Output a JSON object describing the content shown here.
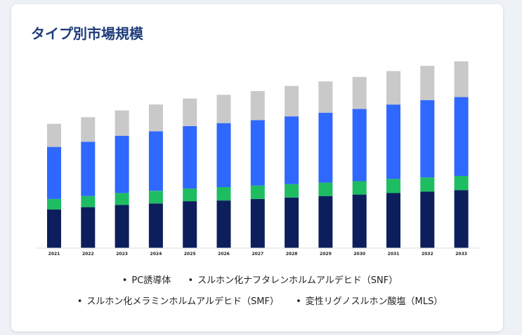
{
  "title": "タイプ別市場規模",
  "chart_data": {
    "type": "bar",
    "stacked": true,
    "title": "タイプ別市場規模",
    "categories": [
      "2021",
      "2022",
      "2023",
      "2024",
      "2025",
      "2026",
      "2027",
      "2028",
      "2029",
      "2030",
      "2031",
      "2032",
      "2033"
    ],
    "series": [
      {
        "name": "PC誘導体",
        "color": "#0c1f5c",
        "values": [
          52,
          55,
          58,
          60,
          63,
          64,
          66,
          68,
          70,
          72,
          74,
          76,
          78
        ]
      },
      {
        "name": "スルホン化ナフタレンホルムアルデヒド（SNF）",
        "color": "#1ebd61",
        "values": [
          14,
          15,
          16,
          17,
          17,
          18,
          18,
          18,
          18,
          18,
          19,
          19,
          19
        ]
      },
      {
        "name": "スルホン化メラミンホルムアルデヒド（SMF）",
        "color": "#2f68ff",
        "values": [
          70,
          73,
          77,
          80,
          84,
          86,
          88,
          91,
          94,
          97,
          100,
          104,
          106
        ]
      },
      {
        "name": "変性リグノスルホン酸塩（MLS）",
        "color": "#c9c9c9",
        "values": [
          31,
          33,
          34,
          36,
          37,
          38,
          39,
          41,
          42,
          43,
          45,
          46,
          48
        ]
      }
    ],
    "ylim": [
      0,
      260
    ],
    "legend_position": "bottom",
    "grid": false
  },
  "legend": {
    "bullet": "•"
  }
}
